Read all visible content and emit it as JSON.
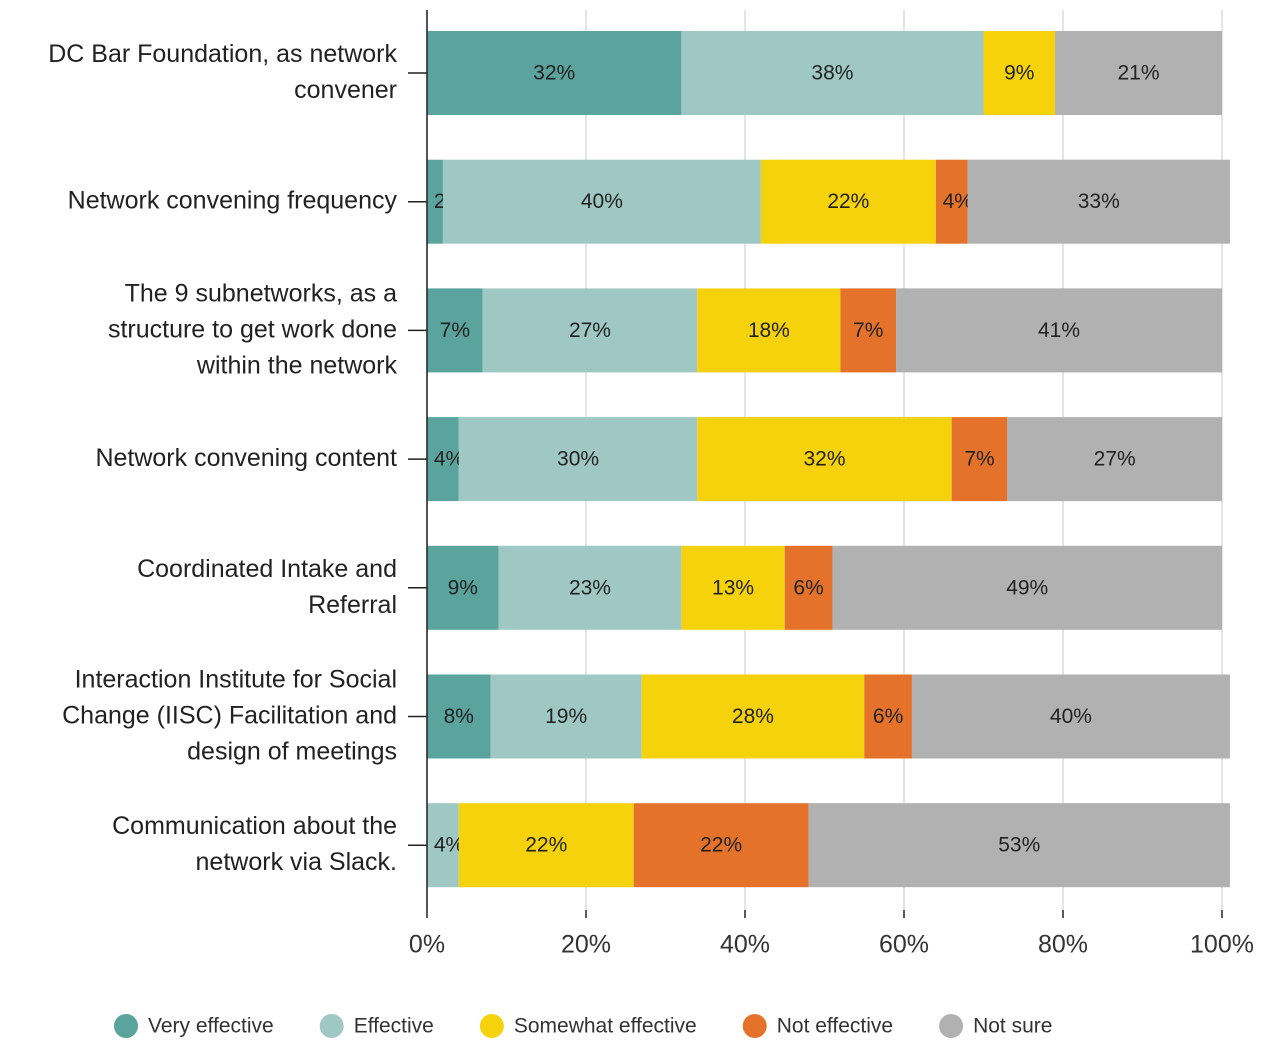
{
  "chart_data": {
    "type": "stacked_barh",
    "categories": [
      "DC Bar Foundation, as network\nconvener",
      "Network convening frequency",
      "The 9 subnetworks, as a\nstructure to get work done\nwithin the network",
      "Network convening content",
      "Coordinated Intake and\nReferral",
      "Interaction Institute for Social\nChange (IISC) Facilitation and\ndesign of meetings",
      "Communication about the\nnetwork via Slack."
    ],
    "series": [
      {
        "name": "Very effective",
        "color": "#5ba39d",
        "values": [
          32,
          2,
          7,
          4,
          9,
          8,
          0
        ],
        "value_labels": [
          "32%",
          "2%",
          "7%",
          "4%",
          "9%",
          "8%",
          null
        ]
      },
      {
        "name": "Effective",
        "color": "#9fc8c4",
        "values": [
          38,
          40,
          27,
          30,
          23,
          19,
          4
        ],
        "value_labels": [
          "38%",
          "40%",
          "27%",
          "30%",
          "23%",
          "19%",
          "4%"
        ]
      },
      {
        "name": "Somewhat effective",
        "color": "#f5d20c",
        "values": [
          9,
          22,
          18,
          32,
          13,
          28,
          22
        ],
        "value_labels": [
          "9%",
          "22%",
          "18%",
          "32%",
          "13%",
          "28%",
          "22%"
        ]
      },
      {
        "name": "Not effective",
        "color": "#e5722a",
        "values": [
          0,
          4,
          7,
          7,
          6,
          6,
          22
        ],
        "value_labels": [
          null,
          "4%",
          "7%",
          "7%",
          "6%",
          "6%",
          "22%"
        ]
      },
      {
        "name": "Not sure",
        "color": "#b2b1b2",
        "values": [
          21,
          33,
          41,
          27,
          49,
          40,
          53
        ],
        "value_labels": [
          "21%",
          "33%",
          "41%",
          "27%",
          "49%",
          "40%",
          "53%"
        ]
      }
    ],
    "xlim": [
      0,
      100
    ],
    "xticks": [
      {
        "value": 0,
        "label": "0%"
      },
      {
        "value": 20,
        "label": "20%"
      },
      {
        "value": 40,
        "label": "40%"
      },
      {
        "value": 60,
        "label": "60%"
      },
      {
        "value": 80,
        "label": "80%"
      },
      {
        "value": 100,
        "label": "100%"
      }
    ],
    "grid": true,
    "legend": "bottom"
  }
}
